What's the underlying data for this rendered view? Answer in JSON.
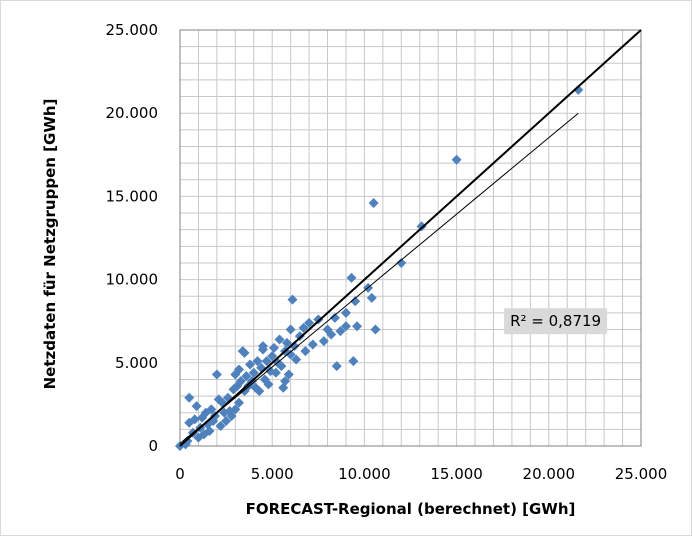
{
  "chart_data": {
    "type": "scatter",
    "xlabel": "FORECAST-Regional (berechnet) [GWh]",
    "ylabel": "Netzdaten für Netzgruppen [GWh]",
    "xlim": [
      0,
      25000
    ],
    "ylim": [
      0,
      25000
    ],
    "x_ticks": [
      0,
      5000,
      10000,
      15000,
      20000,
      25000
    ],
    "y_ticks": [
      0,
      5000,
      10000,
      15000,
      20000,
      25000
    ],
    "x_tick_labels": [
      "0",
      "5.000",
      "10.000",
      "15.000",
      "20.000",
      "25.000"
    ],
    "y_tick_labels": [
      "0",
      "5.000",
      "10.000",
      "15.000",
      "20.000",
      "25.000"
    ],
    "grid": true,
    "minor_grid_step": 1000,
    "marker_color": "#4f81bd",
    "points": [
      [
        0,
        0
      ],
      [
        300,
        100
      ],
      [
        400,
        300
      ],
      [
        500,
        1400
      ],
      [
        500,
        2900
      ],
      [
        700,
        800
      ],
      [
        800,
        1600
      ],
      [
        900,
        2400
      ],
      [
        1000,
        500
      ],
      [
        1100,
        1100
      ],
      [
        1200,
        1700
      ],
      [
        1300,
        700
      ],
      [
        1400,
        2000
      ],
      [
        1500,
        1300
      ],
      [
        1600,
        900
      ],
      [
        1700,
        2200
      ],
      [
        1800,
        1500
      ],
      [
        1900,
        1800
      ],
      [
        2000,
        4300
      ],
      [
        2100,
        2800
      ],
      [
        2200,
        1200
      ],
      [
        2300,
        2600
      ],
      [
        2400,
        2000
      ],
      [
        2500,
        1500
      ],
      [
        2600,
        2900
      ],
      [
        2700,
        2100
      ],
      [
        2800,
        1800
      ],
      [
        2900,
        3400
      ],
      [
        3000,
        2200
      ],
      [
        3000,
        4300
      ],
      [
        3100,
        3600
      ],
      [
        3200,
        2600
      ],
      [
        3200,
        4600
      ],
      [
        3300,
        3900
      ],
      [
        3400,
        5700
      ],
      [
        3500,
        5600
      ],
      [
        3500,
        3300
      ],
      [
        3600,
        4200
      ],
      [
        3700,
        3600
      ],
      [
        3800,
        4900
      ],
      [
        3900,
        3900
      ],
      [
        4000,
        4400
      ],
      [
        4100,
        3500
      ],
      [
        4200,
        5100
      ],
      [
        4300,
        3300
      ],
      [
        4400,
        4700
      ],
      [
        4500,
        5800
      ],
      [
        4500,
        6000
      ],
      [
        4600,
        4000
      ],
      [
        4700,
        5100
      ],
      [
        4800,
        3700
      ],
      [
        4900,
        4500
      ],
      [
        5000,
        5400
      ],
      [
        5100,
        5900
      ],
      [
        5200,
        4400
      ],
      [
        5300,
        5000
      ],
      [
        5400,
        6400
      ],
      [
        5500,
        4800
      ],
      [
        5600,
        3500
      ],
      [
        5700,
        5700
      ],
      [
        5700,
        3900
      ],
      [
        5800,
        6200
      ],
      [
        5900,
        4300
      ],
      [
        6000,
        5500
      ],
      [
        6000,
        7000
      ],
      [
        6100,
        8800
      ],
      [
        6200,
        6000
      ],
      [
        6300,
        5200
      ],
      [
        6500,
        6600
      ],
      [
        6700,
        7100
      ],
      [
        6800,
        5700
      ],
      [
        7000,
        7400
      ],
      [
        7200,
        6100
      ],
      [
        7500,
        7600
      ],
      [
        7800,
        6300
      ],
      [
        8000,
        7000
      ],
      [
        8200,
        6700
      ],
      [
        8400,
        7700
      ],
      [
        8500,
        4800
      ],
      [
        8700,
        6900
      ],
      [
        9000,
        7200
      ],
      [
        9000,
        8000
      ],
      [
        9300,
        10100
      ],
      [
        9400,
        5100
      ],
      [
        9500,
        8700
      ],
      [
        9600,
        7200
      ],
      [
        10200,
        9500
      ],
      [
        10400,
        8900
      ],
      [
        10500,
        14600
      ],
      [
        10600,
        7000
      ],
      [
        12000,
        11000
      ],
      [
        13100,
        13200
      ],
      [
        15000,
        17200
      ],
      [
        21600,
        21400
      ]
    ],
    "lines": [
      {
        "from": [
          0,
          0
        ],
        "to": [
          25000,
          25000
        ],
        "width": 2
      },
      {
        "from": [
          0,
          150
        ],
        "to": [
          21600,
          20000
        ],
        "width": 1
      }
    ],
    "annotation": {
      "text": "R² = 0,8719",
      "at": [
        17900,
        7500
      ]
    }
  }
}
